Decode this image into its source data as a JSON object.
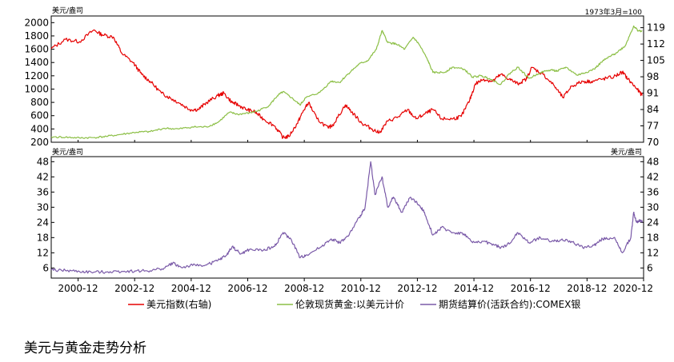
{
  "chart_data": [
    {
      "type": "line",
      "panel": "top",
      "left_unit": "美元/盎司",
      "right_unit": "1973年3月=100",
      "left_ylim": [
        200,
        2100
      ],
      "right_ylim": [
        70,
        124
      ],
      "left_ticks": [
        "200",
        "400",
        "600",
        "800",
        "1000",
        "1200",
        "1400",
        "1600",
        "1800",
        "2000"
      ],
      "right_ticks": [
        "70",
        "77",
        "84",
        "91",
        "98",
        "105",
        "112",
        "119"
      ],
      "x_start": 2000.0,
      "x_end": 2020.95,
      "series": [
        {
          "name": "美元指数(右轴)",
          "axis": "right",
          "color": "#e60000",
          "points": [
            [
              2000.0,
              110
            ],
            [
              2000.5,
              114
            ],
            [
              2001.0,
              113
            ],
            [
              2001.5,
              118
            ],
            [
              2001.8,
              116
            ],
            [
              2002.2,
              115
            ],
            [
              2002.5,
              108
            ],
            [
              2002.9,
              104
            ],
            [
              2003.2,
              99
            ],
            [
              2003.5,
              96
            ],
            [
              2003.9,
              91
            ],
            [
              2004.2,
              89
            ],
            [
              2004.5,
              87
            ],
            [
              2004.9,
              84
            ],
            [
              2005.2,
              84
            ],
            [
              2005.5,
              87
            ],
            [
              2005.9,
              90
            ],
            [
              2006.1,
              91
            ],
            [
              2006.4,
              87
            ],
            [
              2006.6,
              86
            ],
            [
              2006.9,
              84
            ],
            [
              2007.2,
              83
            ],
            [
              2007.5,
              80
            ],
            [
              2007.9,
              77
            ],
            [
              2008.2,
              72
            ],
            [
              2008.4,
              72.5
            ],
            [
              2008.7,
              78
            ],
            [
              2008.9,
              83
            ],
            [
              2009.1,
              87
            ],
            [
              2009.4,
              80
            ],
            [
              2009.8,
              76
            ],
            [
              2010.0,
              78
            ],
            [
              2010.4,
              86
            ],
            [
              2010.7,
              82
            ],
            [
              2011.0,
              78
            ],
            [
              2011.3,
              76
            ],
            [
              2011.6,
              74
            ],
            [
              2011.9,
              79
            ],
            [
              2012.3,
              81
            ],
            [
              2012.6,
              84
            ],
            [
              2012.9,
              80
            ],
            [
              2013.2,
              82
            ],
            [
              2013.5,
              84
            ],
            [
              2013.8,
              80
            ],
            [
              2014.2,
              80
            ],
            [
              2014.5,
              81
            ],
            [
              2014.8,
              88
            ],
            [
              2015.0,
              95
            ],
            [
              2015.3,
              97
            ],
            [
              2015.6,
              96
            ],
            [
              2015.9,
              99
            ],
            [
              2016.2,
              97
            ],
            [
              2016.5,
              95
            ],
            [
              2016.8,
              97
            ],
            [
              2017.0,
              102
            ],
            [
              2017.4,
              99
            ],
            [
              2017.8,
              94
            ],
            [
              2018.1,
              89
            ],
            [
              2018.4,
              94
            ],
            [
              2018.8,
              96
            ],
            [
              2019.1,
              96
            ],
            [
              2019.5,
              97
            ],
            [
              2019.9,
              98
            ],
            [
              2020.2,
              100
            ],
            [
              2020.4,
              97
            ],
            [
              2020.7,
              93
            ],
            [
              2020.9,
              90
            ]
          ]
        },
        {
          "name": "伦敦现货黄金:以美元计价",
          "axis": "left",
          "color": "#8cbf46",
          "points": [
            [
              2000.0,
              280
            ],
            [
              2000.5,
              275
            ],
            [
              2001.0,
              265
            ],
            [
              2001.5,
              270
            ],
            [
              2002.0,
              290
            ],
            [
              2002.5,
              320
            ],
            [
              2003.0,
              350
            ],
            [
              2003.5,
              360
            ],
            [
              2004.0,
              410
            ],
            [
              2004.5,
              400
            ],
            [
              2005.0,
              430
            ],
            [
              2005.5,
              430
            ],
            [
              2005.9,
              500
            ],
            [
              2006.3,
              650
            ],
            [
              2006.6,
              620
            ],
            [
              2007.0,
              640
            ],
            [
              2007.3,
              670
            ],
            [
              2007.7,
              750
            ],
            [
              2008.0,
              900
            ],
            [
              2008.2,
              960
            ],
            [
              2008.5,
              870
            ],
            [
              2008.8,
              760
            ],
            [
              2009.0,
              870
            ],
            [
              2009.5,
              950
            ],
            [
              2009.9,
              1120
            ],
            [
              2010.2,
              1100
            ],
            [
              2010.5,
              1230
            ],
            [
              2010.9,
              1380
            ],
            [
              2011.2,
              1430
            ],
            [
              2011.5,
              1600
            ],
            [
              2011.7,
              1880
            ],
            [
              2011.9,
              1700
            ],
            [
              2012.2,
              1680
            ],
            [
              2012.5,
              1600
            ],
            [
              2012.8,
              1780
            ],
            [
              2013.0,
              1680
            ],
            [
              2013.3,
              1450
            ],
            [
              2013.5,
              1250
            ],
            [
              2013.9,
              1250
            ],
            [
              2014.2,
              1330
            ],
            [
              2014.6,
              1300
            ],
            [
              2014.9,
              1180
            ],
            [
              2015.2,
              1200
            ],
            [
              2015.5,
              1160
            ],
            [
              2015.9,
              1070
            ],
            [
              2016.2,
              1230
            ],
            [
              2016.5,
              1330
            ],
            [
              2016.9,
              1160
            ],
            [
              2017.3,
              1250
            ],
            [
              2017.7,
              1290
            ],
            [
              2017.9,
              1270
            ],
            [
              2018.2,
              1330
            ],
            [
              2018.6,
              1210
            ],
            [
              2018.9,
              1250
            ],
            [
              2019.2,
              1300
            ],
            [
              2019.5,
              1420
            ],
            [
              2019.8,
              1500
            ],
            [
              2020.0,
              1550
            ],
            [
              2020.3,
              1650
            ],
            [
              2020.6,
              1950
            ],
            [
              2020.75,
              1880
            ],
            [
              2020.9,
              1870
            ]
          ]
        }
      ]
    },
    {
      "type": "line",
      "panel": "bottom",
      "left_unit": "美元/盎司",
      "right_unit": "美元/盎司",
      "ylim": [
        2,
        50
      ],
      "left_ticks": [
        "6",
        "12",
        "18",
        "24",
        "30",
        "36",
        "42",
        "48"
      ],
      "right_ticks": [
        "6",
        "12",
        "18",
        "24",
        "30",
        "36",
        "42",
        "48"
      ],
      "x_start": 2000.0,
      "x_end": 2020.95,
      "series": [
        {
          "name": "期货结算价(活跃合约):COMEX银",
          "axis": "left",
          "color": "#7a5aa8",
          "points": [
            [
              2000.0,
              5.2
            ],
            [
              2000.5,
              5.0
            ],
            [
              2001.0,
              4.6
            ],
            [
              2001.5,
              4.3
            ],
            [
              2002.0,
              4.5
            ],
            [
              2002.5,
              4.7
            ],
            [
              2003.0,
              4.8
            ],
            [
              2003.5,
              4.9
            ],
            [
              2004.0,
              6.0
            ],
            [
              2004.3,
              8.0
            ],
            [
              2004.6,
              6.2
            ],
            [
              2005.0,
              7.0
            ],
            [
              2005.5,
              7.2
            ],
            [
              2005.9,
              9.0
            ],
            [
              2006.2,
              11.0
            ],
            [
              2006.4,
              14.5
            ],
            [
              2006.7,
              11.5
            ],
            [
              2007.0,
              13.2
            ],
            [
              2007.5,
              13.0
            ],
            [
              2007.9,
              14.5
            ],
            [
              2008.2,
              20.0
            ],
            [
              2008.5,
              17.0
            ],
            [
              2008.8,
              10.0
            ],
            [
              2009.0,
              11.0
            ],
            [
              2009.5,
              14.0
            ],
            [
              2009.9,
              17.5
            ],
            [
              2010.2,
              16.0
            ],
            [
              2010.5,
              18.5
            ],
            [
              2010.9,
              26.0
            ],
            [
              2011.1,
              30.0
            ],
            [
              2011.3,
              48.0
            ],
            [
              2011.45,
              35.0
            ],
            [
              2011.7,
              42.0
            ],
            [
              2011.9,
              30.0
            ],
            [
              2012.1,
              34.0
            ],
            [
              2012.4,
              28.0
            ],
            [
              2012.7,
              34.0
            ],
            [
              2013.0,
              31.0
            ],
            [
              2013.2,
              28.0
            ],
            [
              2013.5,
              19.0
            ],
            [
              2013.8,
              22.0
            ],
            [
              2014.2,
              20.0
            ],
            [
              2014.6,
              19.5
            ],
            [
              2014.9,
              16.0
            ],
            [
              2015.3,
              16.5
            ],
            [
              2015.7,
              15.0
            ],
            [
              2015.9,
              14.0
            ],
            [
              2016.2,
              15.5
            ],
            [
              2016.5,
              20.0
            ],
            [
              2016.9,
              16.0
            ],
            [
              2017.3,
              18.0
            ],
            [
              2017.7,
              16.5
            ],
            [
              2018.0,
              17.0
            ],
            [
              2018.4,
              16.5
            ],
            [
              2018.8,
              14.0
            ],
            [
              2019.2,
              15.0
            ],
            [
              2019.5,
              17.5
            ],
            [
              2019.9,
              18.0
            ],
            [
              2020.2,
              12.0
            ],
            [
              2020.5,
              18.0
            ],
            [
              2020.6,
              28.0
            ],
            [
              2020.7,
              24.0
            ],
            [
              2020.85,
              25.0
            ],
            [
              2020.9,
              24.0
            ]
          ]
        }
      ]
    }
  ],
  "x_ticks": [
    {
      "label": "2000-12",
      "x": 2000.95
    },
    {
      "label": "2002-12",
      "x": 2002.95
    },
    {
      "label": "2004-12",
      "x": 2004.95
    },
    {
      "label": "2006-12",
      "x": 2006.95
    },
    {
      "label": "2008-12",
      "x": 2008.95
    },
    {
      "label": "2010-12",
      "x": 2010.95
    },
    {
      "label": "2012-12",
      "x": 2012.95
    },
    {
      "label": "2014-12",
      "x": 2014.95
    },
    {
      "label": "2016-12",
      "x": 2016.95
    },
    {
      "label": "2018-12",
      "x": 2018.95
    },
    {
      "label": "2020-12",
      "x": 2020.95
    }
  ],
  "legend": [
    {
      "label": "美元指数(右轴)",
      "color": "#e60000"
    },
    {
      "label": "伦敦现货黄金:以美元计价",
      "color": "#8cbf46"
    },
    {
      "label": "期货结算价(活跃合约):COMEX银",
      "color": "#7a5aa8"
    }
  ],
  "caption": "美元与黄金走势分析"
}
